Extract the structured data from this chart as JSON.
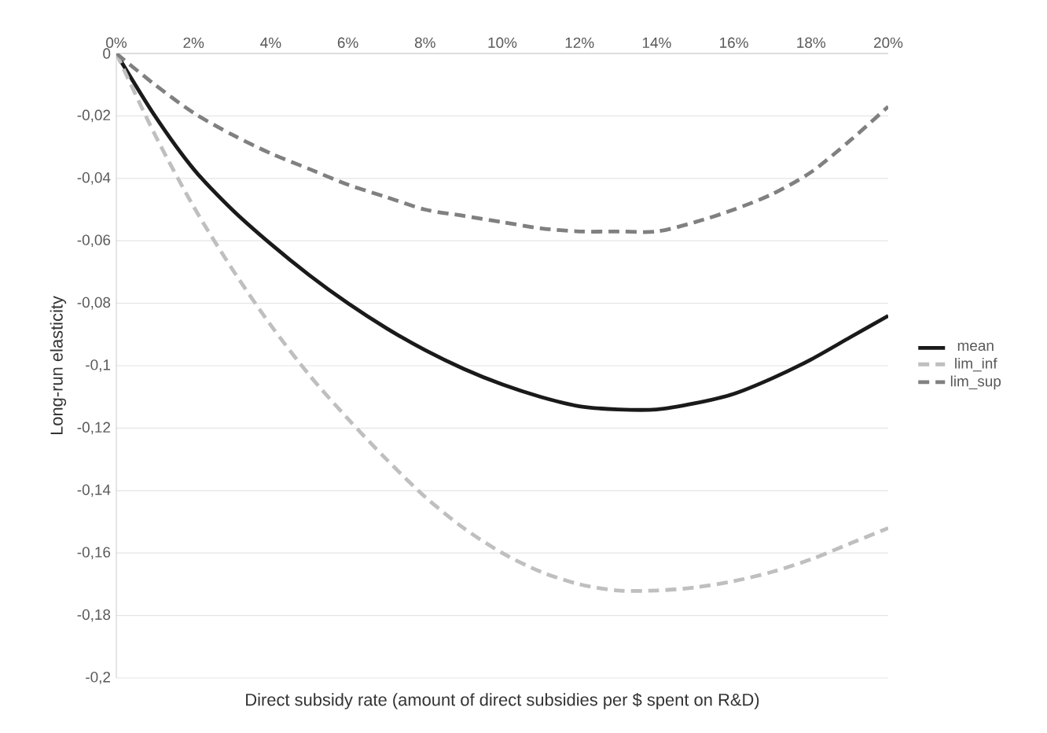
{
  "chart_data": {
    "type": "line",
    "xlabel": "Direct subsidy rate (amount of direct subsidies per $ spent on R&D)",
    "ylabel": "Long-run elasticity",
    "x": [
      0,
      1,
      2,
      3,
      4,
      5,
      6,
      7,
      8,
      9,
      10,
      11,
      12,
      13,
      14,
      15,
      16,
      17,
      18,
      19,
      20
    ],
    "series": [
      {
        "name": "mean",
        "color": "#1a1a1a",
        "line_style": "solid",
        "values": [
          0,
          -0.02,
          -0.037,
          -0.05,
          -0.061,
          -0.071,
          -0.08,
          -0.088,
          -0.095,
          -0.101,
          -0.106,
          -0.11,
          -0.113,
          -0.114,
          -0.114,
          -0.112,
          -0.109,
          -0.104,
          -0.098,
          -0.091,
          -0.084
        ]
      },
      {
        "name": "lim_inf",
        "color": "#bfbfbf",
        "line_style": "dashed",
        "values": [
          0,
          -0.026,
          -0.049,
          -0.069,
          -0.087,
          -0.103,
          -0.117,
          -0.13,
          -0.142,
          -0.152,
          -0.16,
          -0.166,
          -0.17,
          -0.172,
          -0.172,
          -0.171,
          -0.169,
          -0.166,
          -0.162,
          -0.157,
          -0.152
        ]
      },
      {
        "name": "lim_sup",
        "color": "#808080",
        "line_style": "dashed",
        "values": [
          0,
          -0.01,
          -0.019,
          -0.026,
          -0.032,
          -0.037,
          -0.042,
          -0.046,
          -0.05,
          -0.052,
          -0.054,
          -0.056,
          -0.057,
          -0.057,
          -0.057,
          -0.054,
          -0.05,
          -0.045,
          -0.038,
          -0.028,
          -0.017
        ]
      }
    ],
    "xlim": [
      0,
      20
    ],
    "xticks": [
      {
        "value": 0,
        "label": "0%"
      },
      {
        "value": 2,
        "label": "2%"
      },
      {
        "value": 4,
        "label": "4%"
      },
      {
        "value": 6,
        "label": "6%"
      },
      {
        "value": 8,
        "label": "8%"
      },
      {
        "value": 10,
        "label": "10%"
      },
      {
        "value": 12,
        "label": "12%"
      },
      {
        "value": 14,
        "label": "14%"
      },
      {
        "value": 16,
        "label": "16%"
      },
      {
        "value": 18,
        "label": "18%"
      },
      {
        "value": 20,
        "label": "20%"
      }
    ],
    "ylim": [
      -0.2,
      0
    ],
    "yticks": [
      0,
      {
        "value": -0.02,
        "label": "-0,02"
      },
      {
        "value": -0.04,
        "label": "-0,04"
      },
      {
        "value": -0.06,
        "label": "-0,06"
      },
      {
        "value": -0.08,
        "label": "-0,08"
      },
      {
        "value": -0.1,
        "label": "-0,1"
      },
      {
        "value": -0.12,
        "label": "-0,12"
      },
      {
        "value": -0.14,
        "label": "-0,14"
      },
      {
        "value": -0.16,
        "label": "-0,16"
      },
      {
        "value": -0.18,
        "label": "-0,18"
      },
      {
        "value": -0.2,
        "label": "-0,2"
      }
    ],
    "grid": "y",
    "legend": "right"
  }
}
